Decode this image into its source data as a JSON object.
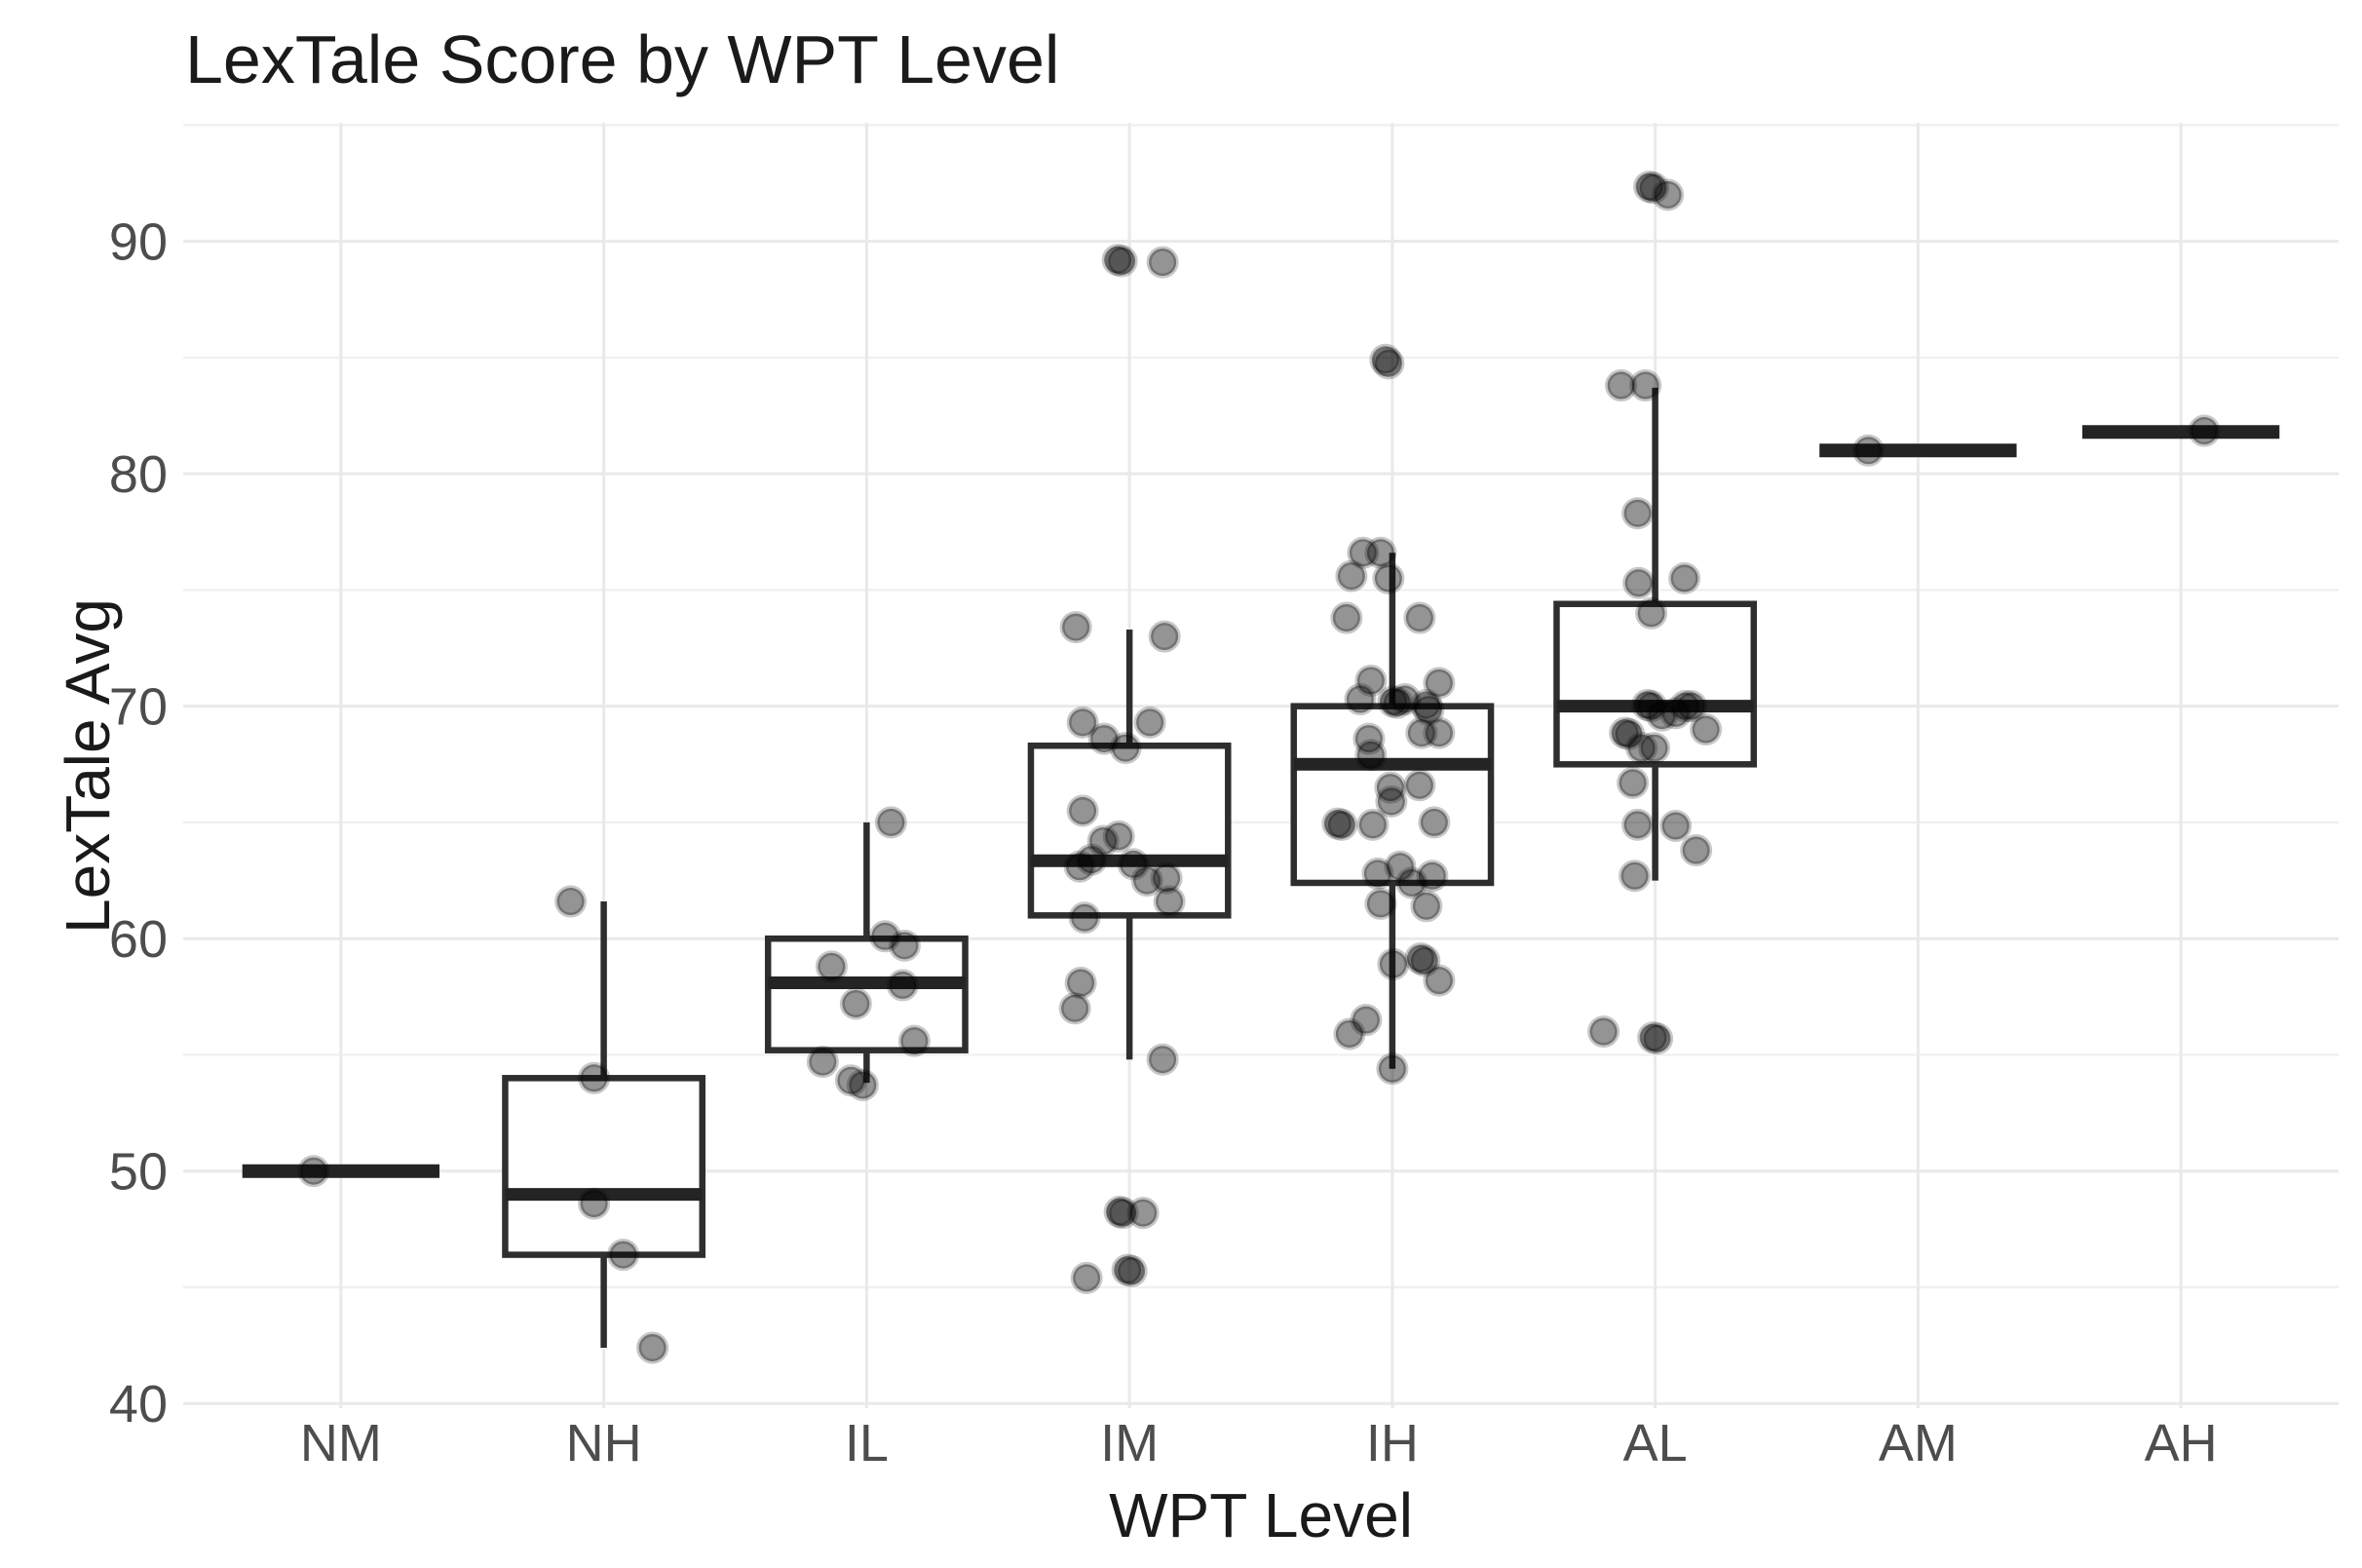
{
  "chart_data": {
    "type": "boxplot",
    "title": "LexTale Score by WPT Level",
    "xlabel": "WPT Level",
    "ylabel": "LexTale Avg",
    "legend": "none",
    "grid": "on",
    "background_color": "#ffffff",
    "grid_major_color": "#e9e9e9",
    "grid_minor_color": "#f0f0f0",
    "box_stroke_color": "#2e2e2e",
    "median_color": "#242424",
    "point_color": "#000000",
    "point_alpha": 0.42,
    "tick_label_color": "#4d4d4d",
    "text_color": "#1a1a1a",
    "y_axis": {
      "major_ticks": [
        40,
        50,
        60,
        70,
        80,
        90
      ],
      "minor_ticks": [
        45,
        55,
        65,
        75,
        85,
        95
      ],
      "domain": [
        39.8,
        95.1
      ]
    },
    "x_categories": [
      "NM",
      "NH",
      "IL",
      "IM",
      "IH",
      "AL",
      "AM",
      "AH"
    ],
    "groups": [
      {
        "label": "NM",
        "degenerate": true,
        "median": 50.0,
        "points": [
          [
            -28,
            50.0
          ]
        ]
      },
      {
        "label": "NH",
        "degenerate": false,
        "whisker_low": 42.4,
        "q1": 46.4,
        "median": 49.0,
        "q3": 54.0,
        "whisker_high": 61.6,
        "points": [
          [
            -34,
            61.6
          ],
          [
            -10,
            54.0
          ],
          [
            -10,
            48.6
          ],
          [
            20,
            46.4
          ],
          [
            50,
            42.4
          ]
        ]
      },
      {
        "label": "IL",
        "degenerate": false,
        "whisker_low": 53.8,
        "q1": 55.2,
        "median": 58.1,
        "q3": 60.0,
        "whisker_high": 65.0,
        "points": [
          [
            25,
            65.0
          ],
          [
            19,
            60.1
          ],
          [
            39,
            59.7
          ],
          [
            -36,
            58.8
          ],
          [
            37,
            58.0
          ],
          [
            -11,
            57.2
          ],
          [
            49,
            55.6
          ],
          [
            -45,
            54.7
          ],
          [
            -16,
            53.9
          ],
          [
            -4,
            53.7
          ]
        ]
      },
      {
        "label": "IM",
        "degenerate": false,
        "whisker_low": 54.8,
        "q1": 61.0,
        "median": 63.35,
        "q3": 68.3,
        "whisker_high": 73.3,
        "points": [
          [
            -12,
            89.2
          ],
          [
            -8,
            89.15
          ],
          [
            34,
            89.1
          ],
          [
            -55,
            73.4
          ],
          [
            36,
            73.0
          ],
          [
            -48,
            69.3
          ],
          [
            21,
            69.3
          ],
          [
            -26,
            68.6
          ],
          [
            -4,
            68.2
          ],
          [
            -48,
            65.5
          ],
          [
            -11,
            64.4
          ],
          [
            -27,
            64.2
          ],
          [
            -39,
            63.4
          ],
          [
            4,
            63.2
          ],
          [
            -51,
            63.1
          ],
          [
            38,
            62.6
          ],
          [
            18,
            62.5
          ],
          [
            41,
            61.6
          ],
          [
            -46,
            60.9
          ],
          [
            -50,
            58.1
          ],
          [
            -56,
            57.0
          ],
          [
            34,
            54.8
          ],
          [
            -10,
            48.25
          ],
          [
            -7,
            48.2
          ],
          [
            14,
            48.2
          ],
          [
            -2,
            45.75
          ],
          [
            2,
            45.7
          ],
          [
            -44,
            45.4
          ]
        ]
      },
      {
        "label": "IH",
        "degenerate": false,
        "whisker_low": 54.4,
        "q1": 62.4,
        "median": 67.5,
        "q3": 70.0,
        "whisker_high": 76.6,
        "points": [
          [
            -7,
            84.9
          ],
          [
            -4,
            84.75
          ],
          [
            -30,
            76.6
          ],
          [
            -12,
            76.6
          ],
          [
            -42,
            75.6
          ],
          [
            -4,
            75.5
          ],
          [
            -47,
            73.8
          ],
          [
            28,
            73.8
          ],
          [
            -22,
            71.1
          ],
          [
            48,
            71.0
          ],
          [
            -33,
            70.3
          ],
          [
            13,
            70.3
          ],
          [
            1,
            70.2
          ],
          [
            5,
            70.15
          ],
          [
            35,
            70.05
          ],
          [
            37,
            69.85
          ],
          [
            30,
            68.85
          ],
          [
            48,
            68.85
          ],
          [
            -24,
            68.6
          ],
          [
            -22,
            67.9
          ],
          [
            28,
            66.6
          ],
          [
            -2,
            66.5
          ],
          [
            -1,
            65.9
          ],
          [
            43,
            65.0
          ],
          [
            -56,
            64.95
          ],
          [
            -52,
            64.9
          ],
          [
            -20,
            64.9
          ],
          [
            8,
            63.1
          ],
          [
            -15,
            62.8
          ],
          [
            41,
            62.7
          ],
          [
            20,
            62.4
          ],
          [
            -12,
            61.5
          ],
          [
            35,
            61.4
          ],
          [
            29,
            59.15
          ],
          [
            33,
            59.05
          ],
          [
            1,
            58.9
          ],
          [
            48,
            58.2
          ],
          [
            -27,
            56.5
          ],
          [
            -44,
            55.9
          ],
          [
            0,
            54.4
          ]
        ]
      },
      {
        "label": "AL",
        "degenerate": false,
        "whisker_low": 62.5,
        "q1": 67.5,
        "median": 70.0,
        "q3": 74.4,
        "whisker_high": 83.7,
        "points": [
          [
            -6,
            92.35
          ],
          [
            -2,
            92.3
          ],
          [
            13,
            92.0
          ],
          [
            -35,
            83.8
          ],
          [
            -10,
            83.8
          ],
          [
            -18,
            78.3
          ],
          [
            30,
            75.5
          ],
          [
            -17,
            75.3
          ],
          [
            -4,
            74.0
          ],
          [
            -8,
            70.05
          ],
          [
            -4,
            70.0
          ],
          [
            31,
            70.0
          ],
          [
            37,
            70.0
          ],
          [
            21,
            69.7
          ],
          [
            7,
            69.6
          ],
          [
            52,
            69.0
          ],
          [
            -31,
            68.85
          ],
          [
            -27,
            68.8
          ],
          [
            -14,
            68.2
          ],
          [
            -1,
            68.2
          ],
          [
            -23,
            66.7
          ],
          [
            -18,
            64.9
          ],
          [
            21,
            64.85
          ],
          [
            42,
            63.8
          ],
          [
            -21,
            62.7
          ],
          [
            -53,
            56.0
          ],
          [
            -2,
            55.75
          ],
          [
            2,
            55.7
          ]
        ]
      },
      {
        "label": "AM",
        "degenerate": true,
        "median": 81.0,
        "points": [
          [
            -51,
            81.0
          ]
        ]
      },
      {
        "label": "AH",
        "degenerate": true,
        "median": 81.8,
        "points": [
          [
            24,
            81.85
          ]
        ]
      }
    ]
  }
}
